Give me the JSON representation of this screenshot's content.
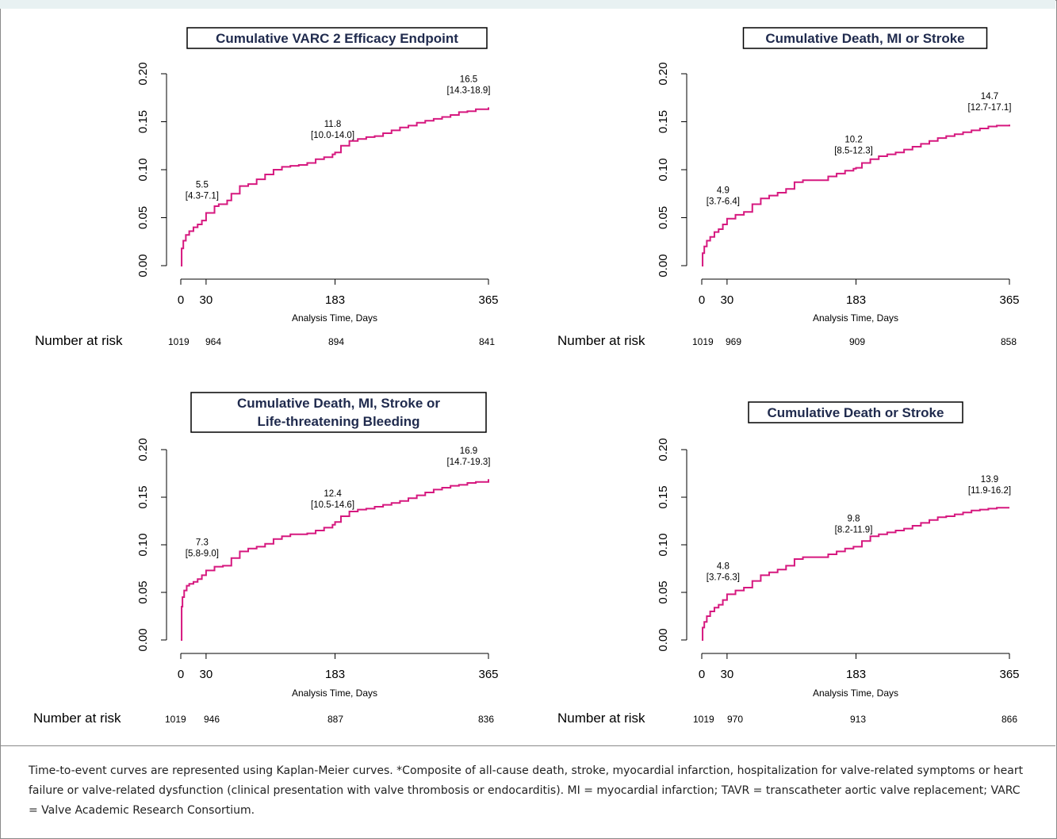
{
  "colors": {
    "curve": "#d6187f",
    "title_text": "#1f2a4d",
    "axis": "#000000"
  },
  "caption": "Time-to-event curves are represented using Kaplan-Meier curves. *Composite of all-cause death, stroke, myocardial infarction, hospitalization for valve-related symptoms or heart failure or valve-related dysfunction (clinical presentation with valve thrombosis or endocarditis). MI = myocardial infarction; TAVR = transcatheter aortic valve replacement; VARC = Valve Academic Research Consortium.",
  "chart_data": [
    {
      "type": "line",
      "title_lines": [
        "Cumulative VARC 2 Efficacy Endpoint"
      ],
      "xlabel": "Analysis Time, Days",
      "ylabel": "",
      "x_ticks": [
        0,
        30,
        183,
        365
      ],
      "y_ticks": [
        "0.00",
        "0.05",
        "0.10",
        "0.15",
        "0.20"
      ],
      "xlim": [
        0,
        365
      ],
      "ylim": [
        0,
        0.2
      ],
      "grid": false,
      "series": [
        {
          "x": [
            0,
            1,
            3,
            6,
            10,
            15,
            20,
            25,
            30,
            40,
            45,
            55,
            60,
            70,
            80,
            90,
            100,
            110,
            120,
            130,
            140,
            150,
            160,
            170,
            180,
            183,
            190,
            200,
            210,
            220,
            230,
            240,
            250,
            260,
            270,
            280,
            290,
            300,
            310,
            320,
            330,
            340,
            350,
            365
          ],
          "y": [
            0,
            0.018,
            0.026,
            0.032,
            0.036,
            0.04,
            0.043,
            0.047,
            0.055,
            0.062,
            0.064,
            0.068,
            0.075,
            0.083,
            0.085,
            0.09,
            0.095,
            0.1,
            0.103,
            0.104,
            0.105,
            0.107,
            0.111,
            0.113,
            0.116,
            0.118,
            0.125,
            0.13,
            0.132,
            0.134,
            0.135,
            0.138,
            0.141,
            0.144,
            0.146,
            0.149,
            0.151,
            0.153,
            0.155,
            0.157,
            0.16,
            0.161,
            0.163,
            0.165
          ]
        }
      ],
      "annotations": [
        {
          "x": 30,
          "y": 0.055,
          "value": "5.5",
          "ci": "[4.3-7.1]"
        },
        {
          "x": 183,
          "y": 0.118,
          "value": "11.8",
          "ci": "[10.0-14.0]"
        },
        {
          "x": 365,
          "y": 0.165,
          "value": "16.5",
          "ci": "[14.3-18.9]"
        }
      ],
      "risk_label": "Number at risk",
      "risk_values": [
        "1019",
        "964",
        "894",
        "841"
      ]
    },
    {
      "type": "line",
      "title_lines": [
        "Cumulative Death, MI or Stroke"
      ],
      "xlabel": "Analysis Time, Days",
      "ylabel": "",
      "x_ticks": [
        0,
        30,
        183,
        365
      ],
      "y_ticks": [
        "0.00",
        "0.05",
        "0.10",
        "0.15",
        "0.20"
      ],
      "xlim": [
        0,
        365
      ],
      "ylim": [
        0,
        0.2
      ],
      "grid": false,
      "series": [
        {
          "x": [
            0,
            1,
            3,
            6,
            10,
            15,
            20,
            25,
            30,
            40,
            50,
            60,
            70,
            80,
            90,
            100,
            110,
            120,
            130,
            140,
            150,
            160,
            170,
            180,
            183,
            190,
            200,
            210,
            220,
            230,
            240,
            250,
            260,
            270,
            280,
            290,
            300,
            310,
            320,
            330,
            340,
            350,
            365
          ],
          "y": [
            0,
            0.013,
            0.02,
            0.026,
            0.03,
            0.035,
            0.038,
            0.043,
            0.049,
            0.053,
            0.056,
            0.064,
            0.07,
            0.073,
            0.076,
            0.08,
            0.087,
            0.089,
            0.089,
            0.089,
            0.093,
            0.096,
            0.099,
            0.101,
            0.102,
            0.107,
            0.111,
            0.114,
            0.116,
            0.118,
            0.121,
            0.124,
            0.127,
            0.13,
            0.133,
            0.135,
            0.137,
            0.139,
            0.141,
            0.143,
            0.145,
            0.146,
            0.147
          ]
        }
      ],
      "annotations": [
        {
          "x": 30,
          "y": 0.049,
          "value": "4.9",
          "ci": "[3.7-6.4]"
        },
        {
          "x": 183,
          "y": 0.102,
          "value": "10.2",
          "ci": "[8.5-12.3]"
        },
        {
          "x": 365,
          "y": 0.147,
          "value": "14.7",
          "ci": "[12.7-17.1]"
        }
      ],
      "risk_label": "Number at risk",
      "risk_values": [
        "1019",
        "969",
        "909",
        "858"
      ]
    },
    {
      "type": "line",
      "title_lines": [
        "Cumulative Death, MI, Stroke or",
        "Life-threatening Bleeding"
      ],
      "xlabel": "Analysis Time, Days",
      "ylabel": "",
      "x_ticks": [
        0,
        30,
        183,
        365
      ],
      "y_ticks": [
        "0.00",
        "0.05",
        "0.10",
        "0.15",
        "0.20"
      ],
      "xlim": [
        0,
        365
      ],
      "ylim": [
        0,
        0.2
      ],
      "grid": false,
      "series": [
        {
          "x": [
            0,
            1,
            2,
            4,
            7,
            10,
            15,
            20,
            25,
            30,
            40,
            50,
            60,
            70,
            80,
            90,
            100,
            110,
            120,
            130,
            140,
            150,
            160,
            170,
            180,
            183,
            190,
            200,
            210,
            220,
            230,
            240,
            250,
            260,
            270,
            280,
            290,
            300,
            310,
            320,
            330,
            340,
            350,
            365
          ],
          "y": [
            0,
            0.035,
            0.045,
            0.052,
            0.057,
            0.059,
            0.061,
            0.064,
            0.068,
            0.073,
            0.077,
            0.078,
            0.086,
            0.093,
            0.096,
            0.098,
            0.101,
            0.106,
            0.109,
            0.111,
            0.111,
            0.112,
            0.115,
            0.118,
            0.121,
            0.124,
            0.13,
            0.135,
            0.137,
            0.138,
            0.14,
            0.142,
            0.144,
            0.146,
            0.149,
            0.152,
            0.155,
            0.158,
            0.16,
            0.162,
            0.163,
            0.165,
            0.166,
            0.169
          ]
        }
      ],
      "annotations": [
        {
          "x": 30,
          "y": 0.073,
          "value": "7.3",
          "ci": "[5.8-9.0]"
        },
        {
          "x": 183,
          "y": 0.124,
          "value": "12.4",
          "ci": "[10.5-14.6]"
        },
        {
          "x": 365,
          "y": 0.169,
          "value": "16.9",
          "ci": "[14.7-19.3]"
        }
      ],
      "risk_label": "Number at risk",
      "risk_values": [
        "1019",
        "946",
        "887",
        "836"
      ]
    },
    {
      "type": "line",
      "title_lines": [
        "Cumulative Death or Stroke"
      ],
      "xlabel": "Analysis Time, Days",
      "ylabel": "",
      "x_ticks": [
        0,
        30,
        183,
        365
      ],
      "y_ticks": [
        "0.00",
        "0.05",
        "0.10",
        "0.15",
        "0.20"
      ],
      "xlim": [
        0,
        365
      ],
      "ylim": [
        0,
        0.2
      ],
      "grid": false,
      "series": [
        {
          "x": [
            0,
            1,
            3,
            6,
            10,
            15,
            20,
            25,
            30,
            40,
            50,
            60,
            70,
            80,
            90,
            100,
            110,
            120,
            130,
            140,
            150,
            160,
            170,
            180,
            183,
            190,
            200,
            210,
            220,
            230,
            240,
            250,
            260,
            270,
            280,
            290,
            300,
            310,
            320,
            330,
            340,
            350,
            365
          ],
          "y": [
            0,
            0.013,
            0.019,
            0.025,
            0.03,
            0.034,
            0.037,
            0.042,
            0.048,
            0.052,
            0.055,
            0.062,
            0.068,
            0.071,
            0.074,
            0.078,
            0.085,
            0.087,
            0.087,
            0.087,
            0.09,
            0.093,
            0.096,
            0.098,
            0.098,
            0.104,
            0.109,
            0.111,
            0.113,
            0.115,
            0.117,
            0.12,
            0.123,
            0.126,
            0.129,
            0.13,
            0.132,
            0.134,
            0.136,
            0.137,
            0.138,
            0.139,
            0.139
          ]
        }
      ],
      "annotations": [
        {
          "x": 30,
          "y": 0.048,
          "value": "4.8",
          "ci": "[3.7-6.3]"
        },
        {
          "x": 183,
          "y": 0.098,
          "value": "9.8",
          "ci": "[8.2-11.9]"
        },
        {
          "x": 365,
          "y": 0.139,
          "value": "13.9",
          "ci": "[11.9-16.2]"
        }
      ],
      "risk_label": "Number at risk",
      "risk_values": [
        "1019",
        "970",
        "913",
        "866"
      ]
    }
  ]
}
